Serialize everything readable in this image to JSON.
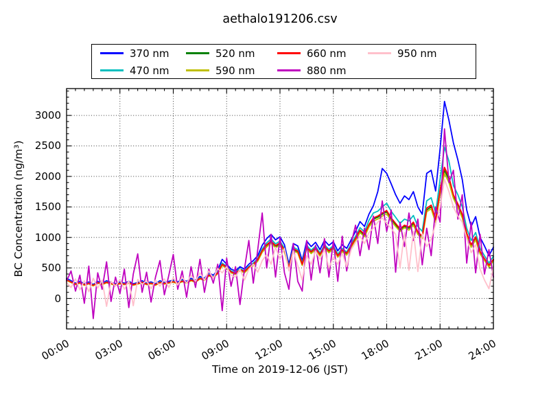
{
  "chart_data": {
    "type": "line",
    "title": "aethalo191206.csv",
    "xlabel": "Time on 2019-12-06 (JST)",
    "ylabel": "BC Concentration (ng/m³)",
    "grid_style": "dotted black gridlines at major ticks, both axes",
    "legend": {
      "position": "top outside axes, boxed",
      "columns": 4
    },
    "xlim_hours": [
      0,
      24
    ],
    "ylim": [
      -500,
      3440
    ],
    "x_minor_tick_hours": 0.5,
    "y_minor_tick": 100,
    "xticks": [
      {
        "hour": 0,
        "label": "00:00"
      },
      {
        "hour": 3,
        "label": "03:00"
      },
      {
        "hour": 6,
        "label": "06:00"
      },
      {
        "hour": 9,
        "label": "09:00"
      },
      {
        "hour": 12,
        "label": "12:00"
      },
      {
        "hour": 15,
        "label": "15:00"
      },
      {
        "hour": 18,
        "label": "18:00"
      },
      {
        "hour": 21,
        "label": "21:00"
      },
      {
        "hour": 24,
        "label": "24:00"
      }
    ],
    "yticks": [
      {
        "value": 0,
        "label": "0"
      },
      {
        "value": 500,
        "label": "500"
      },
      {
        "value": 1000,
        "label": "1000"
      },
      {
        "value": 1500,
        "label": "1500"
      },
      {
        "value": 2000,
        "label": "2000"
      },
      {
        "value": 2500,
        "label": "2500"
      },
      {
        "value": 3000,
        "label": "3000"
      }
    ],
    "x_hours": [
      0,
      0.25,
      0.5,
      0.75,
      1,
      1.25,
      1.5,
      1.75,
      2,
      2.25,
      2.5,
      2.75,
      3,
      3.25,
      3.5,
      3.75,
      4,
      4.25,
      4.5,
      4.75,
      5,
      5.25,
      5.5,
      5.75,
      6,
      6.25,
      6.5,
      6.75,
      7,
      7.25,
      7.5,
      7.75,
      8,
      8.25,
      8.5,
      8.75,
      9,
      9.25,
      9.5,
      9.75,
      10,
      10.25,
      10.5,
      10.75,
      11,
      11.25,
      11.5,
      11.75,
      12,
      12.25,
      12.5,
      12.75,
      13,
      13.25,
      13.5,
      13.75,
      14,
      14.25,
      14.5,
      14.75,
      15,
      15.25,
      15.5,
      15.75,
      16,
      16.25,
      16.5,
      16.75,
      17,
      17.25,
      17.5,
      17.75,
      18,
      18.25,
      18.5,
      18.75,
      19,
      19.25,
      19.5,
      19.75,
      20,
      20.25,
      20.5,
      20.75,
      21,
      21.25,
      21.5,
      21.75,
      22,
      22.25,
      22.5,
      22.75,
      23,
      23.25,
      23.5,
      23.75,
      24
    ],
    "series": [
      {
        "name": "370 nm",
        "color": "#0000ff",
        "values": [
          330,
          290,
          250,
          280,
          240,
          270,
          230,
          280,
          250,
          290,
          260,
          240,
          270,
          250,
          280,
          240,
          260,
          290,
          250,
          270,
          240,
          290,
          260,
          280,
          300,
          270,
          310,
          280,
          330,
          300,
          360,
          330,
          420,
          380,
          460,
          640,
          560,
          480,
          450,
          520,
          480,
          560,
          620,
          700,
          870,
          980,
          1050,
          960,
          1010,
          880,
          560,
          900,
          860,
          620,
          940,
          850,
          920,
          800,
          950,
          870,
          930,
          780,
          880,
          820,
          960,
          1100,
          1260,
          1180,
          1380,
          1520,
          1750,
          2130,
          2050,
          1880,
          1700,
          1560,
          1680,
          1620,
          1750,
          1500,
          1380,
          2050,
          2100,
          1760,
          2450,
          3230,
          2920,
          2550,
          2270,
          1950,
          1450,
          1180,
          1340,
          1000,
          860,
          700,
          840
        ]
      },
      {
        "name": "470 nm",
        "color": "#00bfbf",
        "values": [
          315,
          275,
          240,
          265,
          230,
          255,
          220,
          265,
          240,
          275,
          250,
          230,
          255,
          240,
          265,
          230,
          250,
          275,
          240,
          255,
          230,
          275,
          250,
          265,
          285,
          255,
          295,
          265,
          310,
          285,
          340,
          315,
          395,
          360,
          435,
          580,
          525,
          450,
          425,
          490,
          450,
          525,
          580,
          655,
          810,
          910,
          975,
          895,
          940,
          820,
          520,
          840,
          800,
          580,
          870,
          790,
          855,
          745,
          880,
          805,
          865,
          725,
          820,
          760,
          890,
          1020,
          1160,
          1090,
          1280,
          1400,
          1430,
          1500,
          1560,
          1430,
          1330,
          1230,
          1300,
          1270,
          1360,
          1180,
          1100,
          1600,
          1650,
          1400,
          1950,
          2480,
          2250,
          1850,
          1700,
          1500,
          1150,
          950,
          1080,
          820,
          700,
          580,
          690
        ]
      },
      {
        "name": "520 nm",
        "color": "#008000",
        "values": [
          300,
          265,
          230,
          255,
          220,
          245,
          210,
          255,
          230,
          260,
          240,
          220,
          245,
          230,
          255,
          220,
          240,
          260,
          230,
          245,
          220,
          260,
          240,
          255,
          270,
          245,
          280,
          255,
          295,
          270,
          325,
          300,
          375,
          345,
          415,
          550,
          500,
          430,
          405,
          465,
          430,
          500,
          550,
          625,
          770,
          865,
          925,
          850,
          895,
          780,
          495,
          800,
          760,
          550,
          825,
          750,
          815,
          710,
          840,
          765,
          825,
          690,
          780,
          725,
          845,
          965,
          1100,
          1030,
          1190,
          1300,
          1330,
          1380,
          1420,
          1300,
          1210,
          1120,
          1180,
          1150,
          1230,
          1070,
          1000,
          1450,
          1500,
          1270,
          1750,
          2100,
          1950,
          1680,
          1520,
          1350,
          1050,
          860,
          980,
          750,
          640,
          530,
          630
        ]
      },
      {
        "name": "590 nm",
        "color": "#bfbf00",
        "values": [
          295,
          260,
          225,
          250,
          215,
          240,
          205,
          250,
          225,
          255,
          235,
          215,
          240,
          225,
          250,
          215,
          235,
          255,
          225,
          240,
          215,
          255,
          235,
          250,
          265,
          240,
          275,
          250,
          290,
          265,
          320,
          295,
          370,
          340,
          405,
          540,
          490,
          420,
          395,
          455,
          420,
          490,
          540,
          610,
          755,
          845,
          905,
          830,
          875,
          765,
          485,
          780,
          745,
          540,
          810,
          735,
          800,
          695,
          820,
          750,
          810,
          675,
          765,
          710,
          830,
          945,
          1080,
          1010,
          1170,
          1270,
          1300,
          1350,
          1390,
          1270,
          1180,
          1100,
          1160,
          1120,
          1200,
          1050,
          980,
          1420,
          1470,
          1240,
          1710,
          2050,
          1900,
          1640,
          1490,
          1320,
          1030,
          840,
          960,
          730,
          620,
          515,
          615
        ]
      },
      {
        "name": "660 nm",
        "color": "#ff0000",
        "values": [
          305,
          270,
          235,
          260,
          225,
          250,
          215,
          260,
          235,
          265,
          245,
          225,
          250,
          235,
          260,
          225,
          245,
          265,
          235,
          250,
          225,
          265,
          245,
          260,
          275,
          250,
          285,
          260,
          300,
          275,
          330,
          305,
          380,
          350,
          420,
          560,
          510,
          435,
          410,
          475,
          440,
          510,
          560,
          635,
          785,
          880,
          940,
          865,
          910,
          795,
          505,
          815,
          775,
          560,
          840,
          765,
          830,
          720,
          855,
          780,
          840,
          700,
          795,
          740,
          860,
          985,
          1120,
          1050,
          1210,
          1320,
          1350,
          1400,
          1440,
          1320,
          1230,
          1140,
          1200,
          1170,
          1250,
          1090,
          1020,
          1480,
          1530,
          1290,
          1780,
          2150,
          1990,
          1700,
          1550,
          1380,
          1070,
          880,
          1010,
          770,
          650,
          545,
          640
        ]
      },
      {
        "name": "880 nm",
        "color": "#bf00bf",
        "values": [
          280,
          450,
          120,
          380,
          -80,
          530,
          -330,
          420,
          150,
          600,
          -50,
          350,
          80,
          480,
          -150,
          400,
          730,
          100,
          430,
          -60,
          350,
          620,
          60,
          380,
          720,
          150,
          450,
          20,
          520,
          180,
          640,
          100,
          480,
          250,
          560,
          -200,
          660,
          200,
          520,
          -100,
          480,
          950,
          250,
          800,
          1400,
          500,
          1050,
          350,
          1000,
          420,
          150,
          900,
          280,
          120,
          950,
          300,
          870,
          420,
          980,
          350,
          950,
          280,
          1020,
          450,
          900,
          1200,
          700,
          1150,
          800,
          1350,
          900,
          1600,
          1100,
          1450,
          430,
          1250,
          850,
          1400,
          950,
          1300,
          550,
          1150,
          700,
          1500,
          1250,
          2780,
          1900,
          2100,
          1300,
          1700,
          580,
          1250,
          420,
          1050,
          400,
          800,
          350
        ]
      },
      {
        "name": "950 nm",
        "color": "#ffc0cb",
        "values": [
          260,
          180,
          320,
          140,
          290,
          110,
          330,
          170,
          300,
          -130,
          280,
          200,
          310,
          150,
          290,
          -120,
          310,
          230,
          290,
          160,
          300,
          200,
          320,
          180,
          340,
          220,
          350,
          250,
          380,
          280,
          420,
          300,
          450,
          330,
          490,
          420,
          520,
          380,
          350,
          480,
          300,
          480,
          560,
          430,
          620,
          720,
          560,
          840,
          640,
          820,
          450,
          780,
          540,
          300,
          700,
          560,
          780,
          640,
          800,
          500,
          680,
          560,
          740,
          520,
          800,
          920,
          1020,
          900,
          1080,
          1150,
          1250,
          1320,
          1230,
          1150,
          1050,
          500,
          1080,
          460,
          1100,
          440,
          1060,
          850,
          970,
          1220,
          1500,
          1950,
          1750,
          1500,
          1350,
          1250,
          980,
          750,
          880,
          480,
          300,
          160,
          520
        ]
      }
    ]
  }
}
